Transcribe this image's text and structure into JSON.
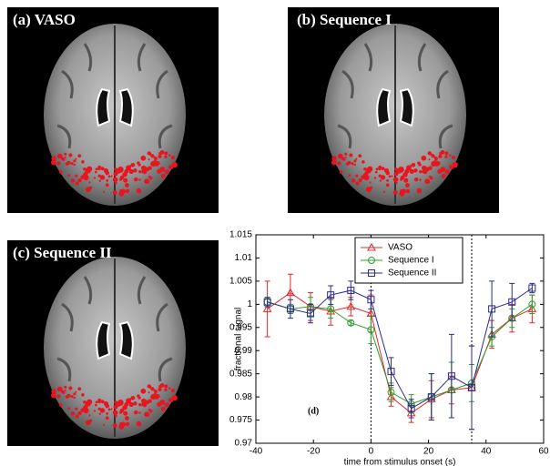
{
  "images": [
    {
      "caption": "(a)  VASO"
    },
    {
      "caption": "(b)  Sequence I"
    },
    {
      "caption": "(c)  Sequence II"
    }
  ],
  "chart_data": {
    "type": "line",
    "annotation": "(d)",
    "xlabel": "time from stimulus onset (s)",
    "ylabel": "fractional signal",
    "x": [
      -36,
      -28,
      -21,
      -14,
      -7,
      0,
      7,
      14,
      21,
      28,
      35,
      42,
      49,
      56
    ],
    "series": [
      {
        "name": "VASO",
        "color": "#e02828",
        "marker": "triangle",
        "values": [
          0.999,
          1.0025,
          0.9995,
          0.9985,
          0.9995,
          0.998,
          0.98,
          0.9765,
          0.9795,
          0.9815,
          0.982,
          0.9935,
          0.997,
          0.999
        ],
        "errors": [
          0.006,
          0.004,
          0.003,
          0.003,
          0.002,
          0.004,
          0.002,
          0.002,
          0.004,
          0.003,
          0.009,
          0.003,
          0.003,
          0.003
        ]
      },
      {
        "name": "Sequence I",
        "color": "#2e9e2e",
        "marker": "circle",
        "values": [
          1.0005,
          0.999,
          0.9995,
          0.999,
          0.996,
          0.9945,
          0.981,
          0.9785,
          0.98,
          0.9815,
          0.983,
          0.993,
          0.997,
          1.0
        ],
        "errors": [
          0.001,
          0.001,
          0.002,
          0.002,
          0.0005,
          0.003,
          0.002,
          0.002,
          0.005,
          0.006,
          0.004,
          0.002,
          0.002,
          0.002
        ]
      },
      {
        "name": "Sequence II",
        "color": "#2a2a8c",
        "marker": "square",
        "values": [
          1.0005,
          0.999,
          0.998,
          1.002,
          1.003,
          1.001,
          0.9855,
          0.9775,
          0.98,
          0.9845,
          0.982,
          0.999,
          1.0005,
          1.0035
        ],
        "errors": [
          0.001,
          0.002,
          0.002,
          0.002,
          0.002,
          0.002,
          0.003,
          0.002,
          0.005,
          0.009,
          0.009,
          0.006,
          0.004,
          0.001
        ]
      }
    ],
    "vlines": [
      0,
      35
    ],
    "xlim": [
      -40,
      60
    ],
    "xticks": [
      -40,
      -20,
      0,
      20,
      40,
      60
    ],
    "ylim": [
      0.97,
      1.015
    ],
    "yticks": [
      0.97,
      0.975,
      0.98,
      0.985,
      0.99,
      0.995,
      1,
      1.005,
      1.01,
      1.015
    ],
    "legend": "upper center"
  }
}
